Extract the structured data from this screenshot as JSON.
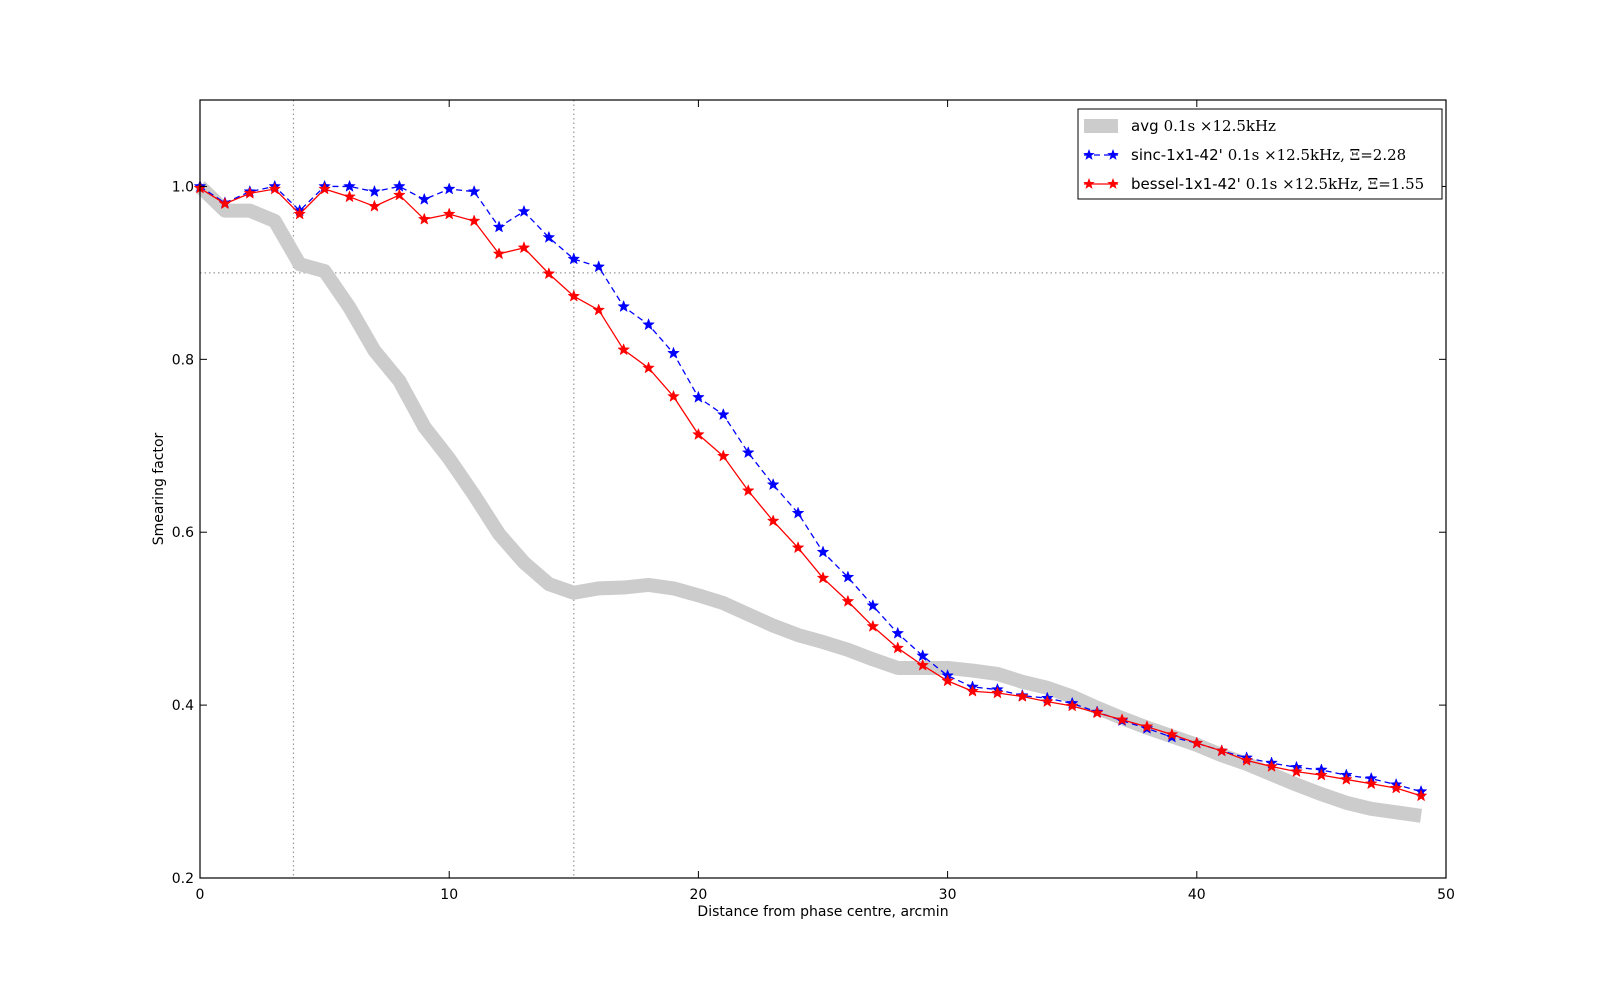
{
  "chart_data": {
    "type": "line",
    "title": "",
    "xlabel": "Distance from phase centre, arcmin",
    "ylabel": "Smearing factor",
    "xlim": [
      0,
      50
    ],
    "ylim": [
      0.2,
      1.1
    ],
    "xticks": [
      0,
      10,
      20,
      30,
      40,
      50
    ],
    "yticks": [
      0.2,
      0.4,
      0.6,
      0.8,
      1.0
    ],
    "xtick_labels": [
      "0",
      "10",
      "20",
      "30",
      "40",
      "50"
    ],
    "ytick_labels": [
      "0.2",
      "0.4",
      "0.6",
      "0.8",
      "1.0"
    ],
    "grid": false,
    "reference_lines": {
      "vertical_x": [
        3.75,
        15
      ],
      "horizontal_y": [
        0.9
      ],
      "style": "dotted"
    },
    "legend_position": "top-right",
    "series": [
      {
        "name": "avg",
        "legend_suffix": "0.1s ×12.5kHz",
        "style": "thick-line",
        "color": "#cccccc",
        "x": [
          0,
          1,
          2,
          3,
          4,
          5,
          6,
          7,
          8,
          9,
          10,
          11,
          12,
          13,
          14,
          15,
          16,
          17,
          18,
          19,
          20,
          21,
          22,
          23,
          24,
          25,
          26,
          27,
          28,
          29,
          30,
          31,
          32,
          33,
          34,
          35,
          36,
          37,
          38,
          39,
          40,
          41,
          42,
          43,
          44,
          45,
          46,
          47,
          48,
          49
        ],
        "values": [
          1.0,
          0.972,
          0.972,
          0.96,
          0.91,
          0.902,
          0.86,
          0.81,
          0.775,
          0.722,
          0.685,
          0.643,
          0.598,
          0.565,
          0.54,
          0.53,
          0.535,
          0.536,
          0.539,
          0.535,
          0.527,
          0.518,
          0.505,
          0.492,
          0.481,
          0.473,
          0.464,
          0.453,
          0.443,
          0.443,
          0.443,
          0.44,
          0.436,
          0.427,
          0.42,
          0.41,
          0.397,
          0.385,
          0.374,
          0.364,
          0.354,
          0.342,
          0.332,
          0.32,
          0.308,
          0.297,
          0.287,
          0.28,
          0.276,
          0.272
        ]
      },
      {
        "name": "sinc-1x1-42'",
        "legend_suffix": "0.1s ×12.5kHz,   Ξ=2.28",
        "style": "dashed-star",
        "color": "#0000ff",
        "x": [
          0,
          1,
          2,
          3,
          4,
          5,
          6,
          7,
          8,
          9,
          10,
          11,
          12,
          13,
          14,
          15,
          16,
          17,
          18,
          19,
          20,
          21,
          22,
          23,
          24,
          25,
          26,
          27,
          28,
          29,
          30,
          31,
          32,
          33,
          34,
          35,
          36,
          37,
          38,
          39,
          40,
          41,
          42,
          43,
          44,
          45,
          46,
          47,
          48,
          49
        ],
        "values": [
          1.0,
          0.981,
          0.994,
          1.0,
          0.972,
          1.0,
          1.0,
          0.994,
          1.0,
          0.985,
          0.997,
          0.994,
          0.953,
          0.971,
          0.941,
          0.916,
          0.907,
          0.861,
          0.84,
          0.807,
          0.756,
          0.736,
          0.692,
          0.655,
          0.622,
          0.577,
          0.548,
          0.515,
          0.483,
          0.457,
          0.434,
          0.421,
          0.418,
          0.411,
          0.408,
          0.402,
          0.392,
          0.382,
          0.373,
          0.363,
          0.356,
          0.347,
          0.339,
          0.333,
          0.328,
          0.325,
          0.319,
          0.315,
          0.308,
          0.3
        ]
      },
      {
        "name": "bessel-1x1-42'",
        "legend_suffix": "0.1s ×12.5kHz,   Ξ=1.55",
        "style": "solid-star",
        "color": "#ff0000",
        "x": [
          0,
          1,
          2,
          3,
          4,
          5,
          6,
          7,
          8,
          9,
          10,
          11,
          12,
          13,
          14,
          15,
          16,
          17,
          18,
          19,
          20,
          21,
          22,
          23,
          24,
          25,
          26,
          27,
          28,
          29,
          30,
          31,
          32,
          33,
          34,
          35,
          36,
          37,
          38,
          39,
          40,
          41,
          42,
          43,
          44,
          45,
          46,
          47,
          48,
          49
        ],
        "values": [
          0.998,
          0.98,
          0.992,
          0.997,
          0.968,
          0.997,
          0.988,
          0.977,
          0.99,
          0.962,
          0.968,
          0.96,
          0.922,
          0.929,
          0.899,
          0.873,
          0.857,
          0.811,
          0.79,
          0.757,
          0.713,
          0.688,
          0.648,
          0.613,
          0.582,
          0.547,
          0.52,
          0.491,
          0.466,
          0.446,
          0.428,
          0.416,
          0.414,
          0.41,
          0.404,
          0.399,
          0.391,
          0.383,
          0.375,
          0.366,
          0.356,
          0.347,
          0.336,
          0.329,
          0.323,
          0.319,
          0.314,
          0.309,
          0.304,
          0.295
        ]
      }
    ]
  }
}
